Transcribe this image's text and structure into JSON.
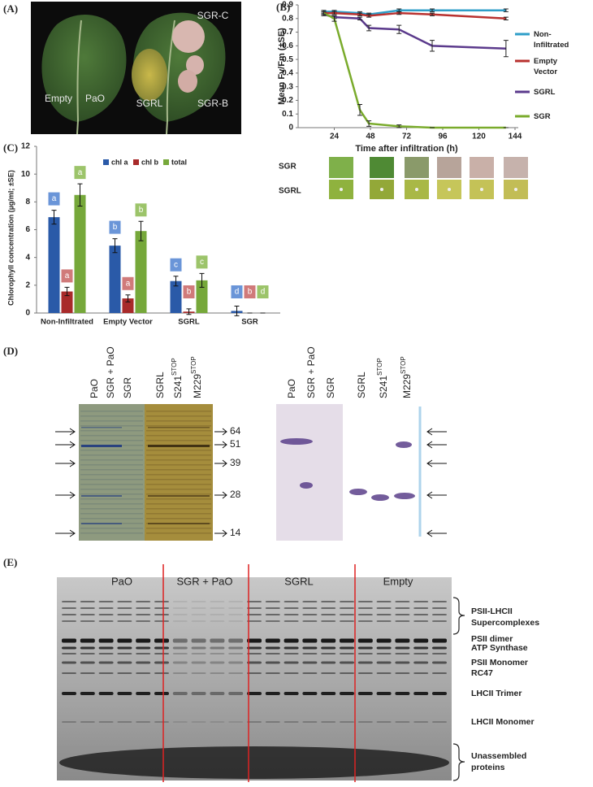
{
  "panels": {
    "a": {
      "label": "(A)",
      "leaf_labels": [
        "Empty",
        "PaO",
        "SGR-C",
        "SGRL",
        "SGR-B"
      ]
    },
    "b": {
      "label": "(B)",
      "strip_labels": [
        "SGR",
        "SGRL"
      ]
    },
    "c": {
      "label": "(C)"
    },
    "d": {
      "label": "(D)",
      "lanes": [
        "PaO",
        "SGR + PaO",
        "SGR",
        "SGRL",
        "S241STOP",
        "M229STOP"
      ],
      "markers": [
        "64",
        "51",
        "39",
        "28",
        "14"
      ]
    },
    "e": {
      "label": "(E)",
      "groups": [
        "PaO",
        "SGR + PaO",
        "SGRL",
        "Empty"
      ],
      "bands": [
        "PSII-LHCII Supercomplexes",
        "PSII dimer",
        "ATP Synthase",
        "PSII Monomer",
        "RC47",
        "LHCII Trimer",
        "LHCII Monomer",
        "Unassembled proteins"
      ]
    }
  },
  "chart_data": [
    {
      "type": "line",
      "x_label": "Time after infiltration (h)",
      "y_label": "Mean Fv/Fm (±SE)",
      "x": [
        17,
        24,
        41,
        47,
        67,
        89,
        138
      ],
      "xlim": [
        0,
        144
      ],
      "xticks": [
        24,
        48,
        72,
        96,
        120,
        144
      ],
      "ylim": [
        0,
        0.9
      ],
      "yticks": [
        0,
        0.1,
        0.2,
        0.3,
        0.4,
        0.5,
        0.6,
        0.7,
        0.8,
        0.9
      ],
      "series": [
        {
          "name": "Non-Infiltrated",
          "color": "#2e9ec8",
          "values": [
            0.85,
            0.85,
            0.84,
            0.83,
            0.86,
            0.86,
            0.86
          ],
          "errors": [
            0.01,
            0.01,
            0.01,
            0.01,
            0.01,
            0.01,
            0.01
          ]
        },
        {
          "name": "Empty Vector",
          "color": "#b8312f",
          "values": [
            0.84,
            0.84,
            0.83,
            0.82,
            0.84,
            0.83,
            0.8
          ],
          "errors": [
            0.01,
            0.01,
            0.01,
            0.01,
            0.01,
            0.01,
            0.01
          ]
        },
        {
          "name": "SGRL",
          "color": "#5b3a8c",
          "values": [
            0.83,
            0.81,
            0.8,
            0.73,
            0.72,
            0.6,
            0.58
          ],
          "errors": [
            0.01,
            0.01,
            0.01,
            0.02,
            0.03,
            0.04,
            0.06
          ]
        },
        {
          "name": "SGR",
          "color": "#7aab2c",
          "values": [
            0.84,
            0.8,
            0.13,
            0.03,
            0.01,
            0,
            0
          ],
          "errors": [
            0.01,
            0.02,
            0.04,
            0.02,
            0.01,
            0,
            0
          ]
        }
      ]
    },
    {
      "type": "bar",
      "y_label": "Chlorophyll concentration (µg/ml; ±SE)",
      "categories": [
        "Non-Infiltrated",
        "Empty Vector",
        "SGRL",
        "SGR"
      ],
      "ylim": [
        0,
        12
      ],
      "yticks": [
        0,
        2,
        4,
        6,
        8,
        10,
        12
      ],
      "series": [
        {
          "name": "chl a",
          "color": "#2a5aa8",
          "values": [
            6.9,
            4.85,
            2.3,
            0.15
          ],
          "errors": [
            0.5,
            0.5,
            0.35,
            0.35
          ],
          "letters": [
            "a",
            "b",
            "c",
            "d"
          ]
        },
        {
          "name": "chl b",
          "color": "#a82a2a",
          "values": [
            1.55,
            1.05,
            0.1,
            0
          ],
          "errors": [
            0.3,
            0.25,
            0.2,
            0
          ],
          "letters": [
            "a",
            "a",
            "b",
            "b"
          ]
        },
        {
          "name": "total",
          "color": "#76a83a",
          "values": [
            8.5,
            5.9,
            2.35,
            0
          ],
          "errors": [
            0.8,
            0.7,
            0.5,
            0
          ],
          "letters": [
            "a",
            "b",
            "c",
            "d"
          ]
        }
      ]
    }
  ]
}
